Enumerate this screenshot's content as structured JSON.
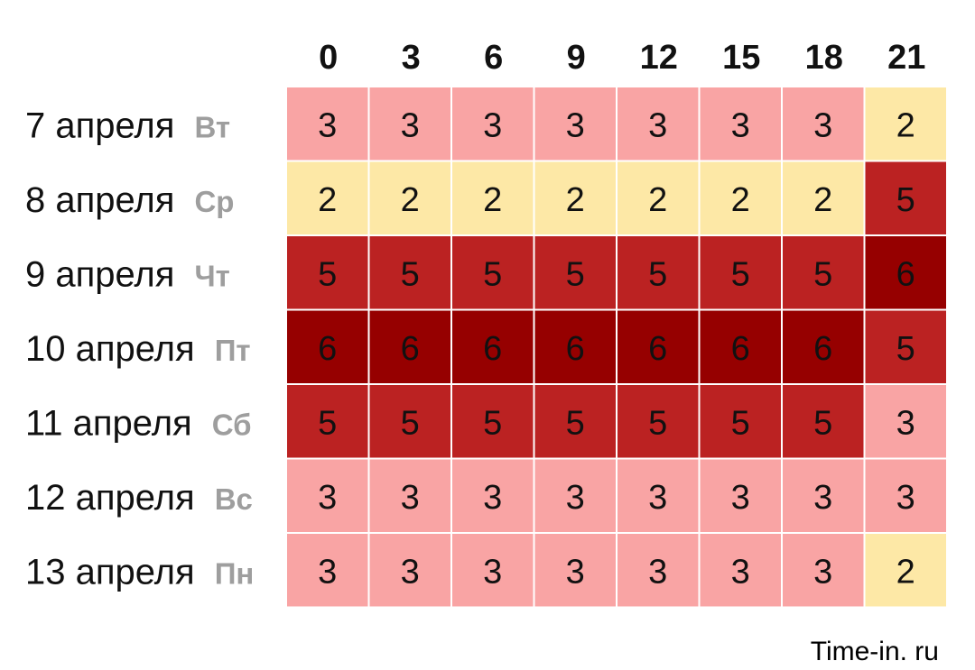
{
  "chart_data": {
    "type": "heatmap",
    "columns": [
      "0",
      "3",
      "6",
      "9",
      "12",
      "15",
      "18",
      "21"
    ],
    "rows": [
      {
        "date": "7 апреля",
        "day": "Вт"
      },
      {
        "date": "8 апреля",
        "day": "Ср"
      },
      {
        "date": "9 апреля",
        "day": "Чт"
      },
      {
        "date": "10 апреля",
        "day": "Пт"
      },
      {
        "date": "11 апреля",
        "day": "Сб"
      },
      {
        "date": "12 апреля",
        "day": "Вс"
      },
      {
        "date": "13 апреля",
        "day": "Пн"
      }
    ],
    "values": [
      [
        3,
        3,
        3,
        3,
        3,
        3,
        3,
        2
      ],
      [
        2,
        2,
        2,
        2,
        2,
        2,
        2,
        5
      ],
      [
        5,
        5,
        5,
        5,
        5,
        5,
        5,
        6
      ],
      [
        6,
        6,
        6,
        6,
        6,
        6,
        6,
        5
      ],
      [
        5,
        5,
        5,
        5,
        5,
        5,
        5,
        3
      ],
      [
        3,
        3,
        3,
        3,
        3,
        3,
        3,
        3
      ],
      [
        3,
        3,
        3,
        3,
        3,
        3,
        3,
        2
      ]
    ],
    "colors": {
      "2": "#fde8a6",
      "3": "#f9a4a4",
      "5": "#bb2222",
      "6": "#960000"
    }
  },
  "footer": {
    "source": "Time-in. ru"
  }
}
